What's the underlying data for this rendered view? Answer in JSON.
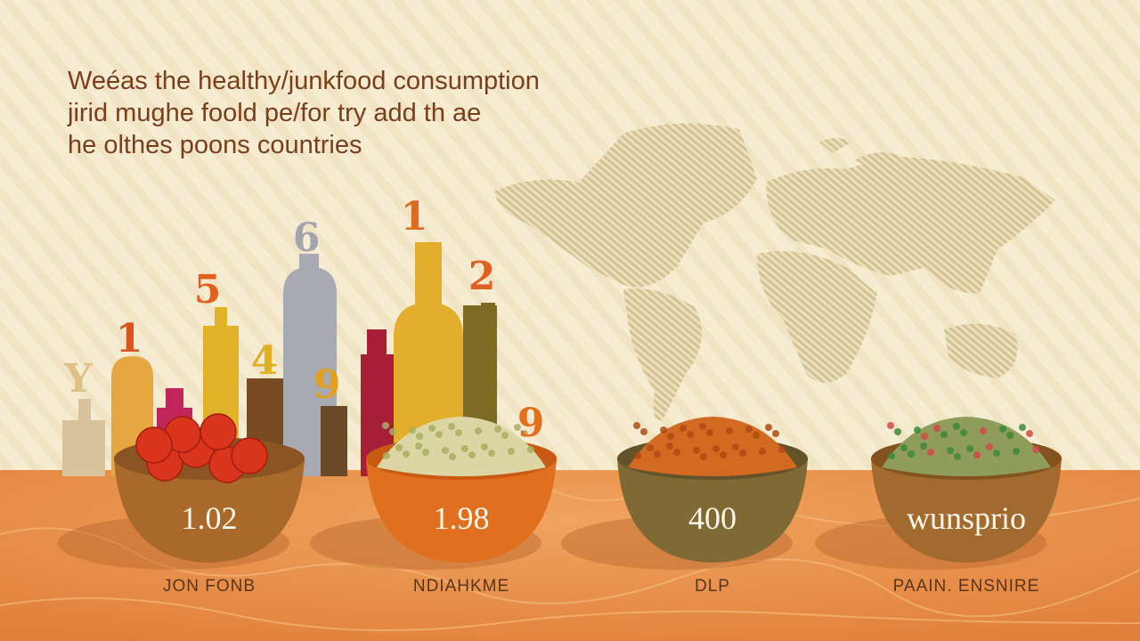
{
  "header": {
    "title_lines": [
      "Weéas the healthy/junkfood consumption",
      "jirid mughe foold pe/for try add th ae",
      "he olthes poons countries"
    ]
  },
  "bottle_labels": [
    "Y",
    "1",
    "5",
    "4",
    "6",
    "9",
    "1",
    "2",
    "9"
  ],
  "bowls": [
    {
      "label": "1.02",
      "caption": "JON FONB"
    },
    {
      "label": "1.98",
      "caption": "NDIAHKME"
    },
    {
      "label": "400",
      "caption": "DLP"
    },
    {
      "label": "wunsprio",
      "caption": "PAAIN. ENSNIRE"
    }
  ]
}
